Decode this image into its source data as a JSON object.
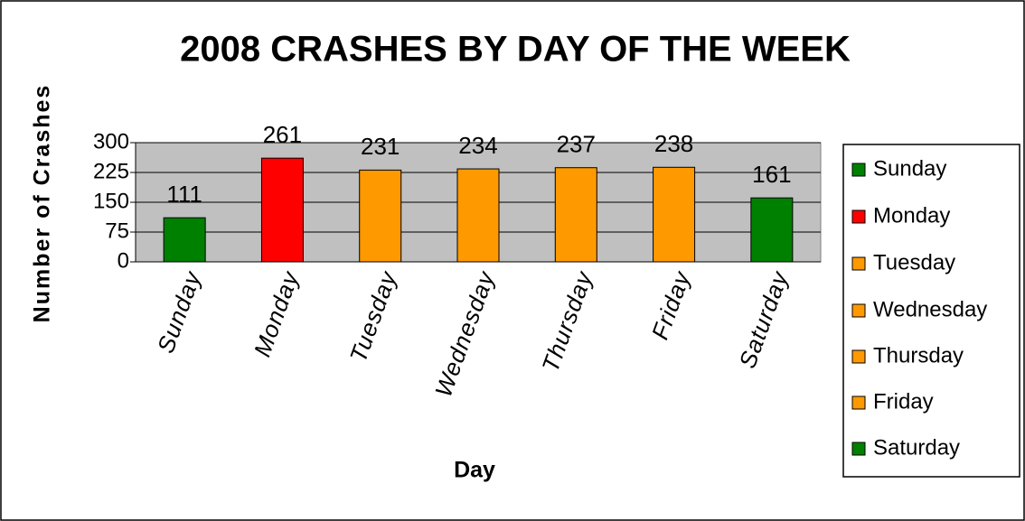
{
  "chart_data": {
    "type": "bar",
    "title": "2008 CRASHES BY DAY OF THE WEEK",
    "x_label": "Day",
    "y_label": "Number of Crashes",
    "categories": [
      "Sunday",
      "Monday",
      "Tuesday",
      "Wednesday",
      "Thursday",
      "Friday",
      "Saturday"
    ],
    "values": [
      111,
      261,
      231,
      234,
      237,
      238,
      161
    ],
    "colors": [
      "#008000",
      "#ff0000",
      "#ff9900",
      "#ff9900",
      "#ff9900",
      "#ff9900",
      "#008000"
    ],
    "ylim": [
      0,
      300
    ],
    "yticks": [
      0,
      75,
      150,
      225,
      300
    ],
    "grid": true,
    "legend": "right"
  }
}
